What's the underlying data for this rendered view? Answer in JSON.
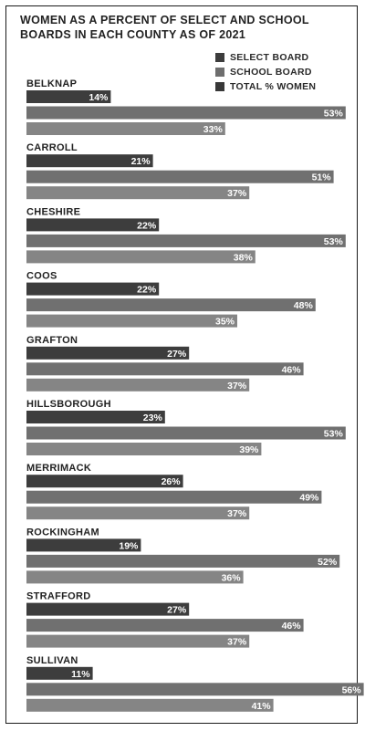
{
  "chart_data": {
    "type": "bar",
    "orientation": "horizontal",
    "title": "WOMEN AS A PERCENT OF SELECT AND SCHOOL BOARDS IN EACH COUNTY AS OF 2021",
    "value_format": "percent",
    "xlim": [
      0,
      60
    ],
    "grid": false,
    "legend_position": "top-right",
    "categories": [
      "BELKNAP",
      "CARROLL",
      "CHESHIRE",
      "COOS",
      "GRAFTON",
      "HILLSBOROUGH",
      "MERRIMACK",
      "ROCKINGHAM",
      "STRAFFORD",
      "SULLIVAN"
    ],
    "series": [
      {
        "name": "SELECT BOARD",
        "color": "#3d3d3d",
        "values": [
          14,
          21,
          22,
          22,
          27,
          23,
          26,
          19,
          27,
          11
        ]
      },
      {
        "name": "SCHOOL BOARD",
        "color": "#707070",
        "values": [
          53,
          51,
          53,
          48,
          46,
          53,
          49,
          52,
          46,
          56
        ]
      },
      {
        "name": "TOTAL % WOMEN",
        "color": "#858585",
        "values": [
          33,
          37,
          38,
          35,
          37,
          39,
          37,
          36,
          37,
          41
        ]
      }
    ]
  },
  "legend_colors": [
    "#3d3d3d",
    "#6e6e6e",
    "#383838"
  ],
  "label_color": "#ffffff",
  "category_color": "#222222"
}
